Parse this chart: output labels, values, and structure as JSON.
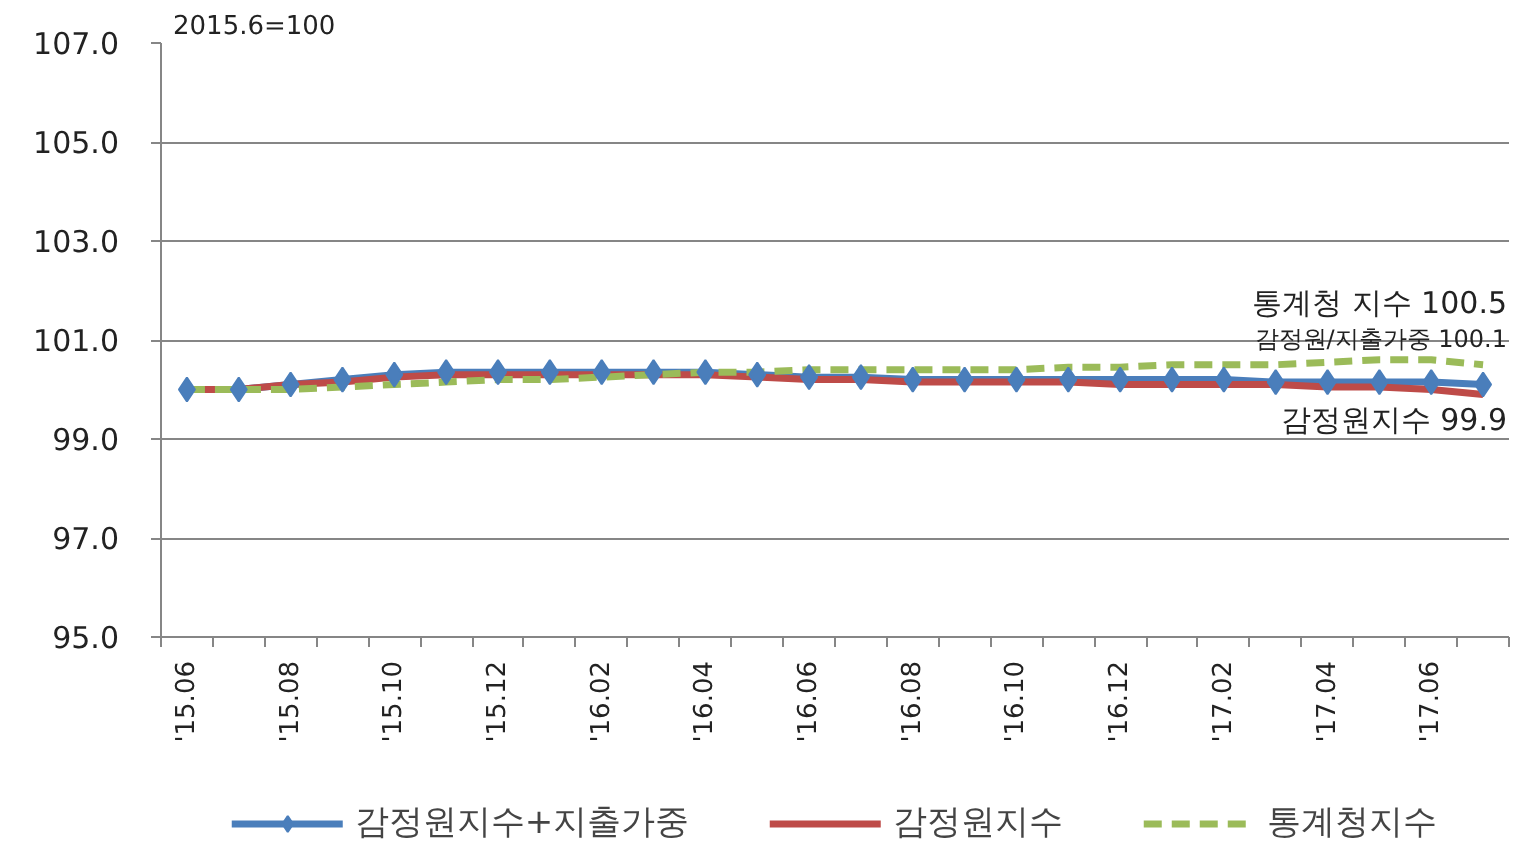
{
  "chart_data": {
    "type": "line",
    "categories": [
      "'15.06",
      null,
      "'15.08",
      null,
      "'15.10",
      null,
      "'15.12",
      null,
      "'16.02",
      null,
      "'16.04",
      null,
      "'16.06",
      null,
      "'16.08",
      null,
      "'16.10",
      null,
      "'16.12",
      null,
      "'17.02",
      null,
      "'17.04",
      null,
      "'17.06",
      null
    ],
    "series": [
      {
        "name": "감정원지수+지출가중",
        "color": "#4a7ebb",
        "marker": "diamond",
        "line_style": "solid",
        "values": [
          100.0,
          100.0,
          100.1,
          100.2,
          100.3,
          100.35,
          100.35,
          100.35,
          100.35,
          100.35,
          100.35,
          100.3,
          100.25,
          100.25,
          100.2,
          100.2,
          100.2,
          100.2,
          100.2,
          100.2,
          100.2,
          100.15,
          100.15,
          100.15,
          100.15,
          100.1
        ]
      },
      {
        "name": "감정원지수",
        "color": "#be4b48",
        "marker": "none",
        "line_style": "solid",
        "values": [
          100.0,
          100.0,
          100.1,
          100.15,
          100.25,
          100.3,
          100.3,
          100.3,
          100.3,
          100.3,
          100.3,
          100.25,
          100.2,
          100.2,
          100.15,
          100.15,
          100.15,
          100.15,
          100.1,
          100.1,
          100.1,
          100.1,
          100.05,
          100.05,
          100.0,
          99.9
        ]
      },
      {
        "name": "통계청지수",
        "color": "#9bbb59",
        "marker": "none",
        "line_style": "dashed",
        "values": [
          100.0,
          100.0,
          100.0,
          100.05,
          100.1,
          100.15,
          100.2,
          100.2,
          100.25,
          100.3,
          100.35,
          100.35,
          100.4,
          100.4,
          100.4,
          100.4,
          100.4,
          100.45,
          100.45,
          100.5,
          100.5,
          100.5,
          100.55,
          100.6,
          100.6,
          100.5
        ]
      }
    ],
    "ylim": [
      95,
      107
    ],
    "yticks": [
      {
        "value": 95,
        "label": "95.0"
      },
      {
        "value": 97,
        "label": "97.0"
      },
      {
        "value": 99,
        "label": "99.0"
      },
      {
        "value": 101,
        "label": "101.0"
      },
      {
        "value": 103,
        "label": "103.0"
      },
      {
        "value": 105,
        "label": "105.0"
      },
      {
        "value": 107,
        "label": "107.0"
      }
    ],
    "grid": "y",
    "legend": "bottom",
    "annotations": [
      "2015.6=100",
      {
        "text": "통계청 지수 100.5",
        "y": 100.5
      },
      {
        "text": "감정원/지출가중 100.1",
        "y": 100.1
      },
      {
        "text": "감정원지수 99.9",
        "y": 99.9
      }
    ]
  }
}
